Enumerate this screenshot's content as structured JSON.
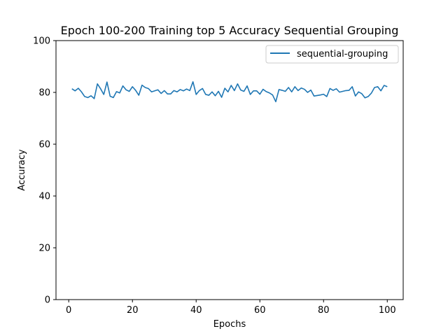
{
  "chart_data": {
    "type": "line",
    "title": "Epoch 100-200 Training top 5 Accuracy Sequential Grouping",
    "xlabel": "Epochs",
    "ylabel": "Accuracy",
    "xlim": [
      -4,
      105
    ],
    "ylim": [
      0,
      100
    ],
    "xticks": [
      0,
      20,
      40,
      60,
      80,
      100
    ],
    "yticks": [
      0,
      20,
      40,
      60,
      80,
      100
    ],
    "grid": false,
    "legend_position": "top-right",
    "series": [
      {
        "name": "sequential-grouping",
        "color": "#1f77b4",
        "x": [
          1,
          2,
          3,
          4,
          5,
          6,
          7,
          8,
          9,
          10,
          11,
          12,
          13,
          14,
          15,
          16,
          17,
          18,
          19,
          20,
          21,
          22,
          23,
          24,
          25,
          26,
          27,
          28,
          29,
          30,
          31,
          32,
          33,
          34,
          35,
          36,
          37,
          38,
          39,
          40,
          41,
          42,
          43,
          44,
          45,
          46,
          47,
          48,
          49,
          50,
          51,
          52,
          53,
          54,
          55,
          56,
          57,
          58,
          59,
          60,
          61,
          62,
          63,
          64,
          65,
          66,
          67,
          68,
          69,
          70,
          71,
          72,
          73,
          74,
          75,
          76,
          77,
          78,
          79,
          80,
          81,
          82,
          83,
          84,
          85,
          86,
          87,
          88,
          89,
          90,
          91,
          92,
          93,
          94,
          95,
          96,
          97,
          98,
          99,
          100
        ],
        "values": [
          81.4,
          80.6,
          81.6,
          80.2,
          78.4,
          78.0,
          78.7,
          77.6,
          83.3,
          81.4,
          79.2,
          84.0,
          78.5,
          78.0,
          80.3,
          79.8,
          82.5,
          81.0,
          80.4,
          82.2,
          80.8,
          78.9,
          82.8,
          81.9,
          81.5,
          80.2,
          80.6,
          81.0,
          79.6,
          80.7,
          79.4,
          79.4,
          80.7,
          80.2,
          81.1,
          80.6,
          81.3,
          80.7,
          84.1,
          79.2,
          80.7,
          81.5,
          79.2,
          78.9,
          80.2,
          78.7,
          80.4,
          78.1,
          81.6,
          80.2,
          82.7,
          80.7,
          83.3,
          80.9,
          80.4,
          82.5,
          79.2,
          80.6,
          80.6,
          79.3,
          81.2,
          80.3,
          79.8,
          79.0,
          76.4,
          81.1,
          80.8,
          80.4,
          81.9,
          80.2,
          82.2,
          80.7,
          81.7,
          81.2,
          80.0,
          80.9,
          78.6,
          78.8,
          79.0,
          79.3,
          78.4,
          81.5,
          80.8,
          81.4,
          80.1,
          80.4,
          80.7,
          80.8,
          82.2,
          78.6,
          80.2,
          79.5,
          77.9,
          78.4,
          79.7,
          81.9,
          82.2,
          80.6,
          82.7,
          82.2
        ]
      }
    ]
  }
}
